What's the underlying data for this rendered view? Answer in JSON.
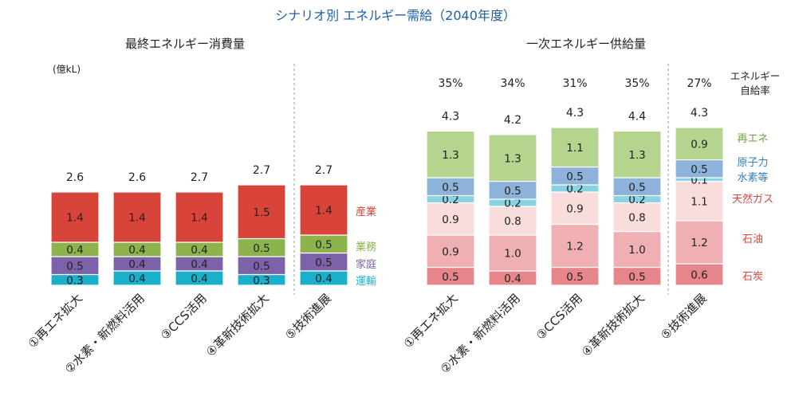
{
  "title": "シナリオ別 エネルギー需給（2040年度）",
  "chart_data": [
    {
      "type": "bar",
      "stacked": true,
      "title": "最終エネルギー消費量",
      "unit_label": "(億kL)",
      "categories": [
        "①再エネ拡大",
        "②水素・新燃料活用",
        "③CCS活用",
        "④革新技術拡大",
        "⑤技術進展"
      ],
      "totals": [
        "2.6",
        "2.6",
        "2.7",
        "2.7",
        "2.7"
      ],
      "series": [
        {
          "name": "運輸",
          "color": "#1ab0c9",
          "values": [
            0.3,
            0.4,
            0.4,
            0.3,
            0.4
          ]
        },
        {
          "name": "家庭",
          "color": "#7c62a8",
          "values": [
            0.5,
            0.4,
            0.4,
            0.5,
            0.5
          ]
        },
        {
          "name": "業務",
          "color": "#8db44c",
          "values": [
            0.4,
            0.4,
            0.4,
            0.5,
            0.5
          ]
        },
        {
          "name": "産業",
          "color": "#d9443a",
          "values": [
            1.4,
            1.4,
            1.4,
            1.5,
            1.4
          ]
        }
      ],
      "grid": false
    },
    {
      "type": "bar",
      "stacked": true,
      "title": "一次エネルギー供給量",
      "categories": [
        "①再エネ拡大",
        "②水素・新燃料活用",
        "③CCS活用",
        "④革新技術拡大",
        "⑤技術進展"
      ],
      "totals": [
        "4.3",
        "4.2",
        "4.3",
        "4.4",
        "4.3"
      ],
      "self_sufficiency_label": [
        "エネルギー",
        "自給率"
      ],
      "self_sufficiency": [
        "35%",
        "34%",
        "31%",
        "35%",
        "27%"
      ],
      "series": [
        {
          "name": "石炭",
          "color": "#e6858a",
          "values": [
            0.5,
            0.4,
            0.5,
            0.5,
            0.6
          ]
        },
        {
          "name": "石油",
          "color": "#f0b0b3",
          "values": [
            0.9,
            1.0,
            1.2,
            1.0,
            1.2
          ]
        },
        {
          "name": "天然ガス",
          "color": "#f9dcdc",
          "values": [
            0.9,
            0.8,
            0.9,
            0.8,
            1.1
          ]
        },
        {
          "name": "水素等",
          "color": "#87d3e3",
          "values": [
            0.2,
            0.2,
            0.2,
            0.2,
            0.1
          ]
        },
        {
          "name": "原子力",
          "color": "#8eb3db",
          "values": [
            0.5,
            0.5,
            0.5,
            0.5,
            0.5
          ]
        },
        {
          "name": "再エネ",
          "color": "#b5d48e",
          "values": [
            1.3,
            1.3,
            1.1,
            1.3,
            0.9
          ]
        }
      ],
      "legend_colors": {
        "再エネ": "#6aa03a",
        "原子力": "#2e7fc1",
        "水素等": "#2e7fc1",
        "天然ガス": "#d9443a",
        "石油": "#d9443a",
        "石炭": "#d9443a"
      },
      "grid": false
    }
  ]
}
